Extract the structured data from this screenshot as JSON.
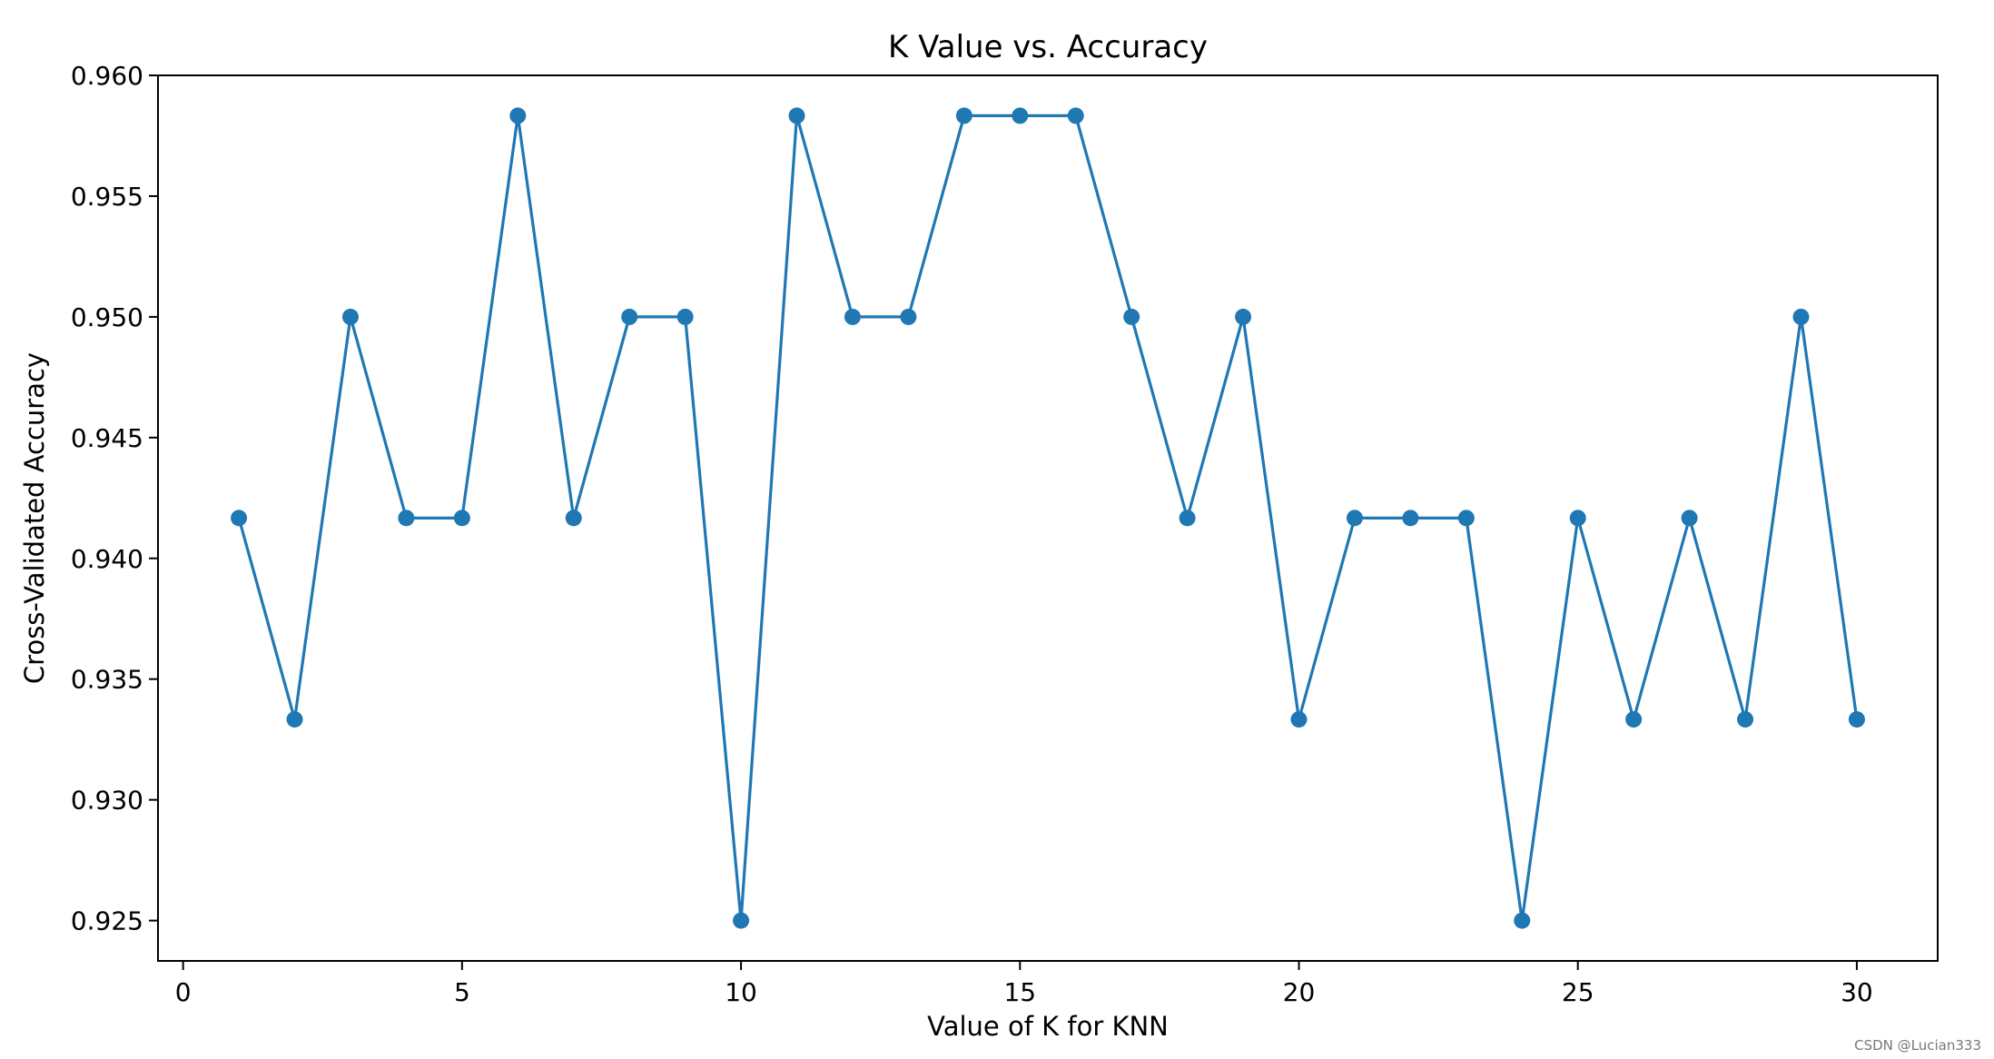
{
  "chart_data": {
    "type": "line",
    "title": "K Value vs. Accuracy",
    "xlabel": "Value of K for KNN",
    "ylabel": "Cross-Validated Accuracy",
    "xlim": [
      -0.45,
      31.45
    ],
    "ylim": [
      0.92333,
      0.96
    ],
    "x_ticks": [
      0,
      5,
      10,
      15,
      20,
      25,
      30
    ],
    "x_tick_labels": [
      "0",
      "5",
      "10",
      "15",
      "20",
      "25",
      "30"
    ],
    "y_ticks": [
      0.925,
      0.93,
      0.935,
      0.94,
      0.945,
      0.95,
      0.955,
      0.96
    ],
    "y_tick_labels": [
      "0.925",
      "0.930",
      "0.935",
      "0.940",
      "0.945",
      "0.950",
      "0.955",
      "0.960"
    ],
    "grid": false,
    "marker": "circle",
    "series": [
      {
        "color": "#1f77b4",
        "x": [
          1,
          2,
          3,
          4,
          5,
          6,
          7,
          8,
          9,
          10,
          11,
          12,
          13,
          14,
          15,
          16,
          17,
          18,
          19,
          20,
          21,
          22,
          23,
          24,
          25,
          26,
          27,
          28,
          29,
          30
        ],
        "y": [
          0.94167,
          0.93333,
          0.95,
          0.94167,
          0.94167,
          0.95833,
          0.94167,
          0.95,
          0.95,
          0.925,
          0.95833,
          0.95,
          0.95,
          0.95833,
          0.95833,
          0.95833,
          0.95,
          0.94167,
          0.95,
          0.93333,
          0.94167,
          0.94167,
          0.94167,
          0.925,
          0.94167,
          0.93333,
          0.94167,
          0.93333,
          0.95,
          0.93333
        ]
      }
    ]
  },
  "watermark": "CSDN @Lucian333"
}
